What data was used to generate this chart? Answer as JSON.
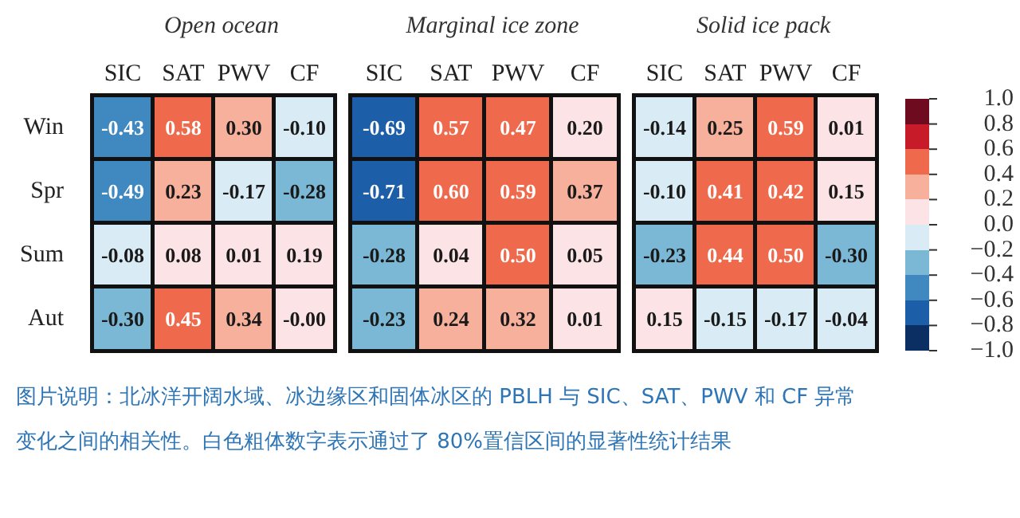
{
  "chart_data": [
    {
      "type": "heatmap",
      "title": "Open ocean",
      "categories": [
        "SIC",
        "SAT",
        "PWV",
        "CF"
      ],
      "y_categories": [
        "Win",
        "Spr",
        "Sum",
        "Aut"
      ],
      "cells": [
        [
          -0.43,
          0.58,
          0.3,
          -0.1
        ],
        [
          -0.49,
          0.23,
          -0.17,
          -0.28
        ],
        [
          -0.08,
          0.08,
          0.01,
          0.19
        ],
        [
          -0.3,
          0.45,
          0.34,
          -0.0
        ]
      ],
      "cell_labels": [
        [
          "-0.43",
          "0.58",
          "0.30",
          "-0.10"
        ],
        [
          "-0.49",
          "0.23",
          "-0.17",
          "-0.28"
        ],
        [
          "-0.08",
          "0.08",
          "0.01",
          "0.19"
        ],
        [
          "-0.30",
          "0.45",
          "0.34",
          "-0.00"
        ]
      ],
      "data_labels": true,
      "annotations": [
        "图片说明：北冰洋开阔水域、冰边缘区和固体冰区的 PBLH 与 SIC、SAT、PWV 和 CF 异常变化之间的相关性。白色粗体数字表示通过了 80%置信区间的显著性统计结果"
      ]
    },
    {
      "type": "heatmap",
      "title": "Marginal ice zone",
      "categories": [
        "SIC",
        "SAT",
        "PWV",
        "CF"
      ],
      "y_categories": [
        null,
        null,
        null,
        null
      ],
      "cells": [
        [
          -0.69,
          0.57,
          0.47,
          0.2
        ],
        [
          -0.71,
          0.6,
          0.59,
          0.37
        ],
        [
          -0.28,
          0.04,
          0.5,
          0.05
        ],
        [
          -0.23,
          0.24,
          0.32,
          0.01
        ]
      ],
      "cell_labels": [
        [
          "-0.69",
          "0.57",
          "0.47",
          "0.20"
        ],
        [
          "-0.71",
          "0.60",
          "0.59",
          "0.37"
        ],
        [
          "-0.28",
          "0.04",
          "0.50",
          "0.05"
        ],
        [
          "-0.23",
          "0.24",
          "0.32",
          "0.01"
        ]
      ],
      "data_labels": true,
      "tick_labels": "x"
    },
    {
      "type": "heatmap",
      "title": "Solid ice pack",
      "categories": [
        "SIC",
        "SAT",
        "PWV",
        "CF"
      ],
      "y_categories": [
        null,
        null,
        null,
        null
      ],
      "cells": [
        [
          -0.14,
          0.25,
          0.59,
          0.01
        ],
        [
          -0.1,
          0.41,
          0.42,
          0.15
        ],
        [
          -0.23,
          0.44,
          0.5,
          -0.3
        ],
        [
          0.15,
          -0.15,
          -0.17,
          -0.04
        ]
      ],
      "cell_labels": [
        [
          "-0.14",
          "0.25",
          "0.59",
          "0.01"
        ],
        [
          "-0.10",
          "0.41",
          "0.42",
          "0.15"
        ],
        [
          "-0.23",
          "0.44",
          "0.50",
          "-0.30"
        ],
        [
          "0.15",
          "-0.15",
          "-0.17",
          "-0.04"
        ]
      ],
      "clim": [
        -1.0,
        1.0
      ],
      "data_labels": true,
      "tick_labels": "x",
      "cticks": [
        {
          "value": 1.0,
          "label": "1.0"
        },
        0.8,
        0.6,
        0.4,
        0.2,
        {
          "value": 0.0,
          "label": "0.0"
        },
        {
          "value": -0.2,
          "label": "−0.2"
        },
        {
          "value": -0.4,
          "label": "−0.4"
        },
        {
          "value": -0.6,
          "label": "−0.6"
        },
        {
          "value": -0.8,
          "label": "−0.8"
        },
        {
          "value": -1.0,
          "label": "−1.0"
        }
      ]
    }
  ]
}
